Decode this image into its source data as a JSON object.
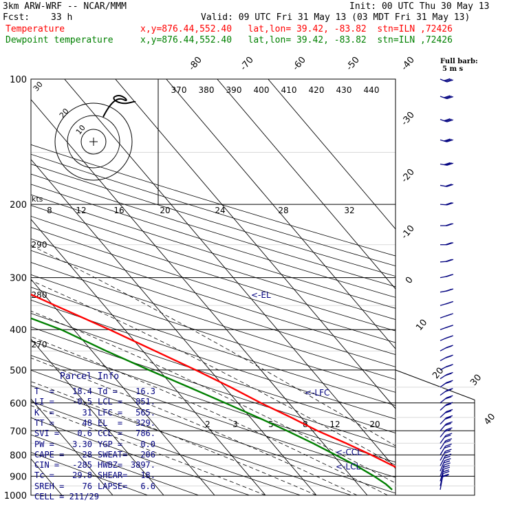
{
  "header": {
    "line1_left": "3km ARW-WRF -- NCAR/MMM",
    "line1_right": "Init: 00 UTC Thu 30 May 13",
    "fcst_label": "Fcst:",
    "fcst_value": "33 h",
    "valid": "Valid: 09 UTC Fri 31 May 13 (03 MDT Fri 31 May 13)",
    "field1": "Temperature",
    "field2": "Dewpoint temperature",
    "loc1": "x,y=876.44,552.40   lat,lon= 39.42, -83.82  stn=ILN ,72426",
    "loc2": "x,y=876.44,552.40   lat,lon= 39.42, -83.82  stn=ILN ,72426"
  },
  "barb_legend": {
    "line1": "Full barb:",
    "line2": "5 m s"
  },
  "hodograph": {
    "units": "kts",
    "ring_labels": [
      "10",
      "20",
      "30"
    ]
  },
  "parcel_info": {
    "title": "Parcel Info",
    "rows": [
      [
        "T  =",
        "18.4",
        "Td =",
        "16.3"
      ],
      [
        "LI =",
        "-0.5",
        "LCL =",
        "851."
      ],
      [
        "K  =",
        "31",
        "LFC =",
        "565."
      ],
      [
        "TT =",
        "48",
        "EL  =",
        "329."
      ],
      [
        "SVI =",
        "0.6",
        "CCL =",
        "786."
      ],
      [
        "PW =",
        "3.30",
        "YGP =",
        "0.0"
      ],
      [
        "CAPE =",
        "28",
        "SWEAT=",
        "206"
      ],
      [
        "CIN =",
        "-285",
        "HWBZ=",
        "3897."
      ],
      [
        "Tc =",
        "29.8",
        "SHEAR=",
        "18."
      ],
      [
        "SREH =",
        "76",
        "LAPSE=",
        "6.6"
      ]
    ],
    "cell": "CELL = 211/29"
  },
  "chart_data": {
    "type": "line",
    "subtype": "skew-T log-p sounding",
    "y_axis": {
      "scale": "log",
      "range": [
        1000,
        100
      ],
      "ticks": [
        100,
        200,
        300,
        400,
        500,
        600,
        700,
        800,
        900,
        1000
      ]
    },
    "isotherm_labels": [
      "-80",
      "-70",
      "-60",
      "-50",
      "-40",
      "-30",
      "-20",
      "-10",
      "0",
      "10",
      "20",
      "30",
      "40"
    ],
    "theta_labels": [
      "370",
      "380",
      "390",
      "400",
      "410",
      "420",
      "430",
      "440"
    ],
    "theta_left_labels": [
      "290",
      "280",
      "270"
    ],
    "mixing_ratio_top": [
      "8",
      "12",
      "16",
      "20",
      "24",
      "28",
      "32"
    ],
    "mixing_ratio_bottom": [
      "2",
      "3",
      "5",
      "8",
      "12",
      "20"
    ],
    "levels": [
      {
        "name": "EL",
        "label": "<-EL",
        "p": 329
      },
      {
        "name": "LFC",
        "label": "<-LFC",
        "p": 565
      },
      {
        "name": "CCL",
        "label": "<-CCL",
        "p": 786
      },
      {
        "name": "LCL",
        "label": "<-LCL",
        "p": 851
      }
    ],
    "series": [
      {
        "name": "Temperature",
        "color": "#ff0000",
        "points": [
          [
            970,
            17.5
          ],
          [
            955,
            20.0
          ],
          [
            920,
            21.0
          ],
          [
            895,
            22.0
          ],
          [
            880,
            21.5
          ],
          [
            850,
            20.0
          ],
          [
            800,
            17.5
          ],
          [
            750,
            14.5
          ],
          [
            700,
            11.0
          ],
          [
            650,
            8.0
          ],
          [
            600,
            4.5
          ],
          [
            550,
            1.2
          ],
          [
            500,
            -2.8
          ],
          [
            450,
            -7.6
          ],
          [
            400,
            -13.0
          ],
          [
            350,
            -19.6
          ],
          [
            300,
            -27.0
          ],
          [
            280,
            -31.2
          ],
          [
            250,
            -37.0
          ],
          [
            220,
            -43.6
          ],
          [
            200,
            -48.5
          ],
          [
            180,
            -51.3
          ],
          [
            170,
            -52.0
          ],
          [
            150,
            -53.0
          ],
          [
            135,
            -53.5
          ],
          [
            120,
            -54.5
          ],
          [
            110,
            -55.5
          ],
          [
            100,
            -57.0
          ]
        ]
      },
      {
        "name": "Dewpoint temperature",
        "color": "#008000",
        "points": [
          [
            970,
            15.8
          ],
          [
            940,
            15.5
          ],
          [
            900,
            14.5
          ],
          [
            850,
            12.8
          ],
          [
            800,
            10.5
          ],
          [
            750,
            8.0
          ],
          [
            700,
            5.0
          ],
          [
            650,
            1.5
          ],
          [
            600,
            -2.5
          ],
          [
            550,
            -7.0
          ],
          [
            500,
            -12.0
          ],
          [
            450,
            -17.2
          ],
          [
            400,
            -22.5
          ],
          [
            370,
            -27.5
          ],
          [
            335,
            -35.5
          ],
          [
            300,
            -39.0
          ],
          [
            270,
            -42.5
          ],
          [
            240,
            -48.0
          ],
          [
            200,
            -55.5
          ],
          [
            180,
            -60.0
          ],
          [
            160,
            -65.0
          ],
          [
            140,
            -69.5
          ],
          [
            125,
            -73.0
          ],
          [
            110,
            -76.5
          ],
          [
            100,
            -78.5
          ]
        ]
      }
    ],
    "wind_barbs": [
      {
        "p": 970,
        "spd_ms": 5,
        "dir": 200
      },
      {
        "p": 950,
        "spd_ms": 8,
        "dir": 205
      },
      {
        "p": 925,
        "spd_ms": 10,
        "dir": 210
      },
      {
        "p": 900,
        "spd_ms": 10,
        "dir": 215
      },
      {
        "p": 875,
        "spd_ms": 10,
        "dir": 220
      },
      {
        "p": 850,
        "spd_ms": 10,
        "dir": 225
      },
      {
        "p": 825,
        "spd_ms": 10,
        "dir": 228
      },
      {
        "p": 800,
        "spd_ms": 10,
        "dir": 230
      },
      {
        "p": 775,
        "spd_ms": 10,
        "dir": 232
      },
      {
        "p": 750,
        "spd_ms": 10,
        "dir": 235
      },
      {
        "p": 725,
        "spd_ms": 10,
        "dir": 238
      },
      {
        "p": 700,
        "spd_ms": 10,
        "dir": 240
      },
      {
        "p": 675,
        "spd_ms": 10,
        "dir": 242
      },
      {
        "p": 650,
        "spd_ms": 10,
        "dir": 245
      },
      {
        "p": 625,
        "spd_ms": 10,
        "dir": 245
      },
      {
        "p": 600,
        "spd_ms": 10,
        "dir": 248
      },
      {
        "p": 575,
        "spd_ms": 10,
        "dir": 250
      },
      {
        "p": 550,
        "spd_ms": 10,
        "dir": 250
      },
      {
        "p": 525,
        "spd_ms": 10,
        "dir": 252
      },
      {
        "p": 500,
        "spd_ms": 10,
        "dir": 255
      },
      {
        "p": 475,
        "spd_ms": 10,
        "dir": 255
      },
      {
        "p": 450,
        "spd_ms": 10,
        "dir": 255
      },
      {
        "p": 425,
        "spd_ms": 10,
        "dir": 258
      },
      {
        "p": 400,
        "spd_ms": 10,
        "dir": 260
      },
      {
        "p": 375,
        "spd_ms": 10,
        "dir": 260
      },
      {
        "p": 350,
        "spd_ms": 10,
        "dir": 262
      },
      {
        "p": 325,
        "spd_ms": 10,
        "dir": 265
      },
      {
        "p": 300,
        "spd_ms": 10,
        "dir": 265
      },
      {
        "p": 275,
        "spd_ms": 10,
        "dir": 268
      },
      {
        "p": 250,
        "spd_ms": 10,
        "dir": 270
      },
      {
        "p": 225,
        "spd_ms": 10,
        "dir": 270
      },
      {
        "p": 200,
        "spd_ms": 10,
        "dir": 272
      },
      {
        "p": 180,
        "spd_ms": 10,
        "dir": 275
      },
      {
        "p": 160,
        "spd_ms": 15,
        "dir": 275
      },
      {
        "p": 140,
        "spd_ms": 15,
        "dir": 278
      },
      {
        "p": 125,
        "spd_ms": 15,
        "dir": 280
      },
      {
        "p": 110,
        "spd_ms": 15,
        "dir": 280
      },
      {
        "p": 100,
        "spd_ms": 15,
        "dir": 282
      }
    ],
    "colors": {
      "temperature": "#ff0000",
      "dewpoint": "#008000",
      "barbs": "#00007f",
      "grid": "#000000"
    }
  }
}
